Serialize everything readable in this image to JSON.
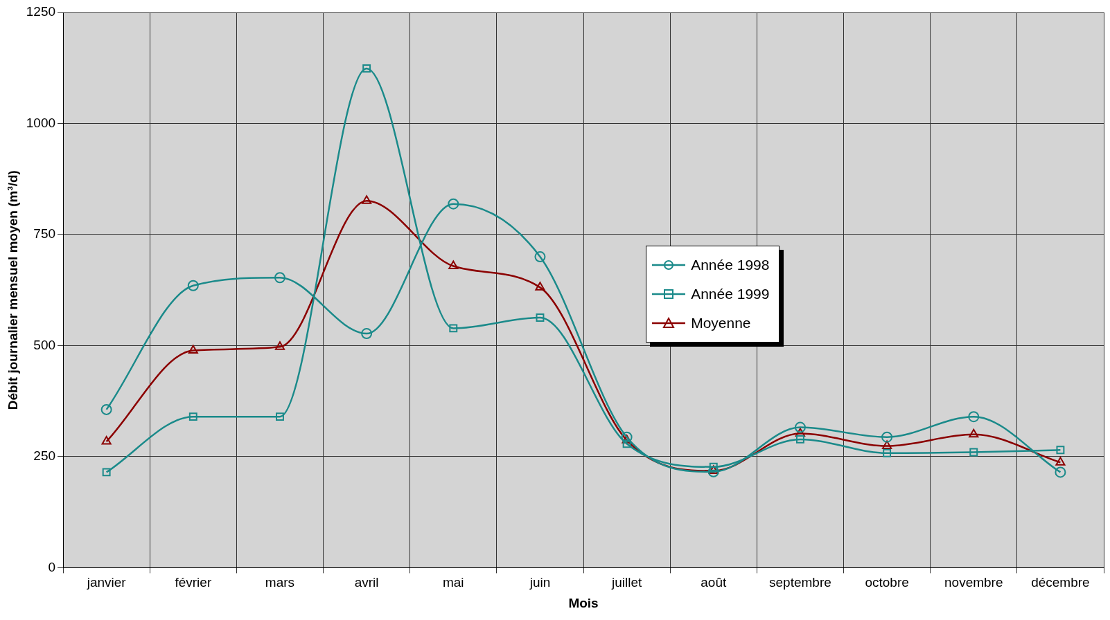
{
  "chart_data": {
    "type": "line",
    "xlabel": "Mois",
    "ylabel": "Débit journalier mensuel moyen (m³/d)",
    "categories": [
      "janvier",
      "février",
      "mars",
      "avril",
      "mai",
      "juin",
      "juillet",
      "août",
      "septembre",
      "octobre",
      "novembre",
      "décembre"
    ],
    "series": [
      {
        "name": "Année 1998",
        "color": "#1a8a8a",
        "marker": "circle",
        "values": [
          356,
          635,
          653,
          527,
          819,
          700,
          294,
          216,
          316,
          294,
          340,
          215
        ]
      },
      {
        "name": "Année 1999",
        "color": "#1a8a8a",
        "marker": "square",
        "values": [
          215,
          340,
          340,
          1124,
          539,
          563,
          279,
          227,
          289,
          258,
          260,
          265
        ]
      },
      {
        "name": "Moyenne",
        "color": "#8b0000",
        "marker": "triangle",
        "values": [
          284,
          489,
          497,
          826,
          679,
          631,
          287,
          218,
          302,
          274,
          300,
          237
        ]
      }
    ],
    "ylim": [
      0,
      1250
    ],
    "yticks": [
      0,
      250,
      500,
      750,
      1000,
      1250
    ],
    "grid": true,
    "legend": "center",
    "line_style": "solid"
  }
}
